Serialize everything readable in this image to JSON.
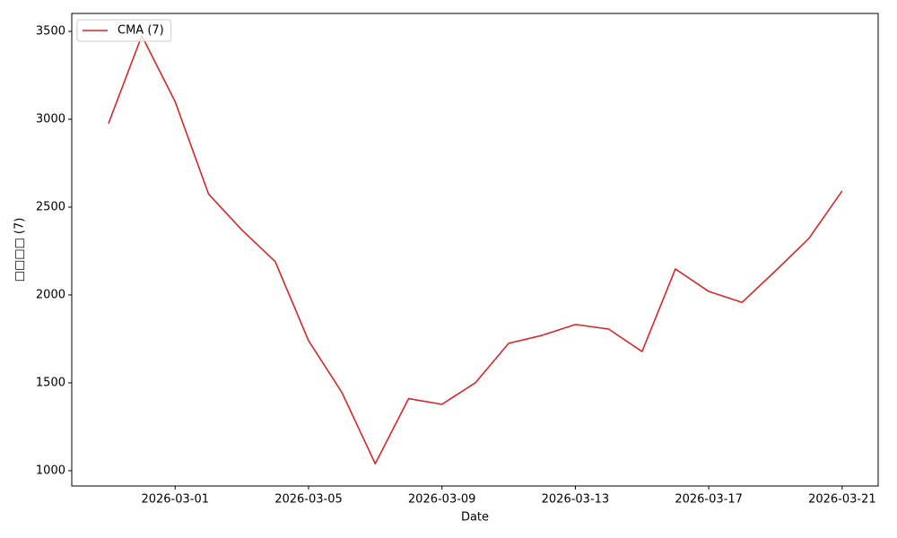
{
  "chart_data": {
    "type": "line",
    "xlabel": "Date",
    "ylabel": "□□□□ (7)",
    "x": [
      "2026-02-27",
      "2026-02-28",
      "2026-03-01",
      "2026-03-02",
      "2026-03-03",
      "2026-03-04",
      "2026-03-05",
      "2026-03-06",
      "2026-03-07",
      "2026-03-08",
      "2026-03-09",
      "2026-03-10",
      "2026-03-11",
      "2026-03-12",
      "2026-03-13",
      "2026-03-14",
      "2026-03-15",
      "2026-03-16",
      "2026-03-17",
      "2026-03-18",
      "2026-03-19",
      "2026-03-20",
      "2026-03-21"
    ],
    "series": [
      {
        "name": "CMA (7)",
        "color": "#d62728",
        "values": [
          2975,
          3475,
          3100,
          2575,
          2370,
          2190,
          1740,
          1445,
          1040,
          1410,
          1378,
          1500,
          1725,
          1770,
          1832,
          1806,
          1678,
          2148,
          2020,
          1958,
          2137,
          2321,
          2592
        ]
      }
    ],
    "xlim": [
      "2026-02-25T21:36:00Z",
      "2026-03-22T01:55:00Z"
    ],
    "xticks": [
      "2026-03-01",
      "2026-03-05",
      "2026-03-09",
      "2026-03-13",
      "2026-03-17",
      "2026-03-21"
    ],
    "ylim": [
      913,
      3602
    ],
    "yticks": [
      1000,
      1500,
      2000,
      2500,
      3000,
      3500
    ],
    "grid": false,
    "legend": "upper-left"
  }
}
